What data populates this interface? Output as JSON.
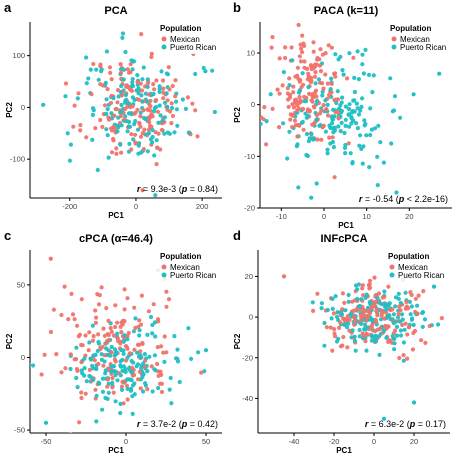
{
  "legend": {
    "title": "Population",
    "entries": [
      {
        "label": "Mexican",
        "color": "#f0736b"
      },
      {
        "label": "Puerto Rican",
        "color": "#1fbfc3"
      }
    ]
  },
  "colors": {
    "mexican": "#f0736b",
    "puerto_rican": "#1fbfc3"
  },
  "chart_data": [
    {
      "type": "scatter",
      "panel_letter": "a",
      "title": "PCA",
      "xlabel": "PC1",
      "ylabel": "PC2",
      "xlim": [
        -320,
        260
      ],
      "ylim": [
        -175,
        165
      ],
      "xticks": [
        -200,
        0,
        200
      ],
      "yticks": [
        -100,
        0,
        100
      ],
      "grid": false,
      "legend_position": "top-right",
      "annotation": {
        "r": "9.3e-3",
        "p": "0.84"
      },
      "series": [
        {
          "name": "Mexican",
          "center": [
            0,
            0
          ],
          "spread": [
            75,
            52
          ],
          "n": 170,
          "seed": 11
        },
        {
          "name": "Puerto Rican",
          "center": [
            5,
            0
          ],
          "spread": [
            82,
            55
          ],
          "n": 170,
          "seed": 12
        }
      ],
      "outliers": [
        {
          "series": "Puerto Rican",
          "x": -280,
          "y": 5
        },
        {
          "series": "Puerto Rican",
          "x": 210,
          "y": 70
        },
        {
          "series": "Mexican",
          "x": 20,
          "y": -160
        }
      ]
    },
    {
      "type": "scatter",
      "panel_letter": "b",
      "title": "PACA (k=11)",
      "xlabel": "PC1",
      "ylabel": "PC2",
      "xlim": [
        -15,
        30
      ],
      "ylim": [
        -20,
        16
      ],
      "xticks": [
        -10,
        0,
        10,
        20
      ],
      "yticks": [
        -20,
        -10,
        0,
        10
      ],
      "grid": false,
      "legend_position": "top-right",
      "annotation": {
        "r": "-0.54",
        "p": "< 2.2e-16"
      },
      "series": [
        {
          "name": "Mexican",
          "center": [
            -3.5,
            2
          ],
          "spread": [
            4.2,
            5.2
          ],
          "n": 170,
          "seed": 21
        },
        {
          "name": "Puerto Rican",
          "center": [
            3,
            -2
          ],
          "spread": [
            6,
            5
          ],
          "n": 170,
          "seed": 22
        }
      ],
      "outliers": [
        {
          "series": "Puerto Rican",
          "x": 27,
          "y": 6
        },
        {
          "series": "Puerto Rican",
          "x": 21,
          "y": 2
        },
        {
          "series": "Puerto Rican",
          "x": 17,
          "y": -17
        },
        {
          "series": "Puerto Rican",
          "x": -3,
          "y": -18
        }
      ]
    },
    {
      "type": "scatter",
      "panel_letter": "c",
      "title": "cPCA (α=46.4)",
      "xlabel": "PC1",
      "ylabel": "PC2",
      "xlim": [
        -60,
        60
      ],
      "ylim": [
        -52,
        74
      ],
      "xticks": [
        -50,
        0,
        50
      ],
      "yticks": [
        -50,
        0,
        50
      ],
      "grid": false,
      "legend_position": "top-right",
      "annotation": {
        "r": "3.7e-2",
        "p": "0.42"
      },
      "series": [
        {
          "name": "Mexican",
          "center": [
            -8,
            5
          ],
          "spread": [
            20,
            20
          ],
          "n": 170,
          "seed": 31
        },
        {
          "name": "Puerto Rican",
          "center": [
            -5,
            -5
          ],
          "spread": [
            20,
            14
          ],
          "n": 170,
          "seed": 32
        }
      ],
      "outliers": [
        {
          "series": "Mexican",
          "x": -47,
          "y": 68
        },
        {
          "series": "Mexican",
          "x": 20,
          "y": 60
        },
        {
          "series": "Puerto Rican",
          "x": 50,
          "y": 5
        },
        {
          "series": "Puerto Rican",
          "x": -50,
          "y": -45
        }
      ]
    },
    {
      "type": "scatter",
      "panel_letter": "d",
      "title": "INFcPCA",
      "xlabel": "PC1",
      "ylabel": "PC2",
      "xlim": [
        -58,
        38
      ],
      "ylim": [
        -57,
        33
      ],
      "xticks": [
        -40,
        -20,
        0,
        20
      ],
      "yticks": [
        -40,
        -20,
        0,
        20
      ],
      "grid": false,
      "legend_position": "top-right",
      "annotation": {
        "r": "6.3e-2",
        "p": "0.17"
      },
      "series": [
        {
          "name": "Mexican",
          "center": [
            0,
            0
          ],
          "spread": [
            13,
            8
          ],
          "n": 170,
          "seed": 41
        },
        {
          "name": "Puerto Rican",
          "center": [
            0,
            0
          ],
          "spread": [
            13,
            8
          ],
          "n": 170,
          "seed": 42
        }
      ],
      "outliers": [
        {
          "series": "Puerto Rican",
          "x": 5,
          "y": -50
        },
        {
          "series": "Puerto Rican",
          "x": 20,
          "y": -42
        },
        {
          "series": "Mexican",
          "x": -45,
          "y": 20
        },
        {
          "series": "Puerto Rican",
          "x": 30,
          "y": 15
        }
      ]
    }
  ]
}
